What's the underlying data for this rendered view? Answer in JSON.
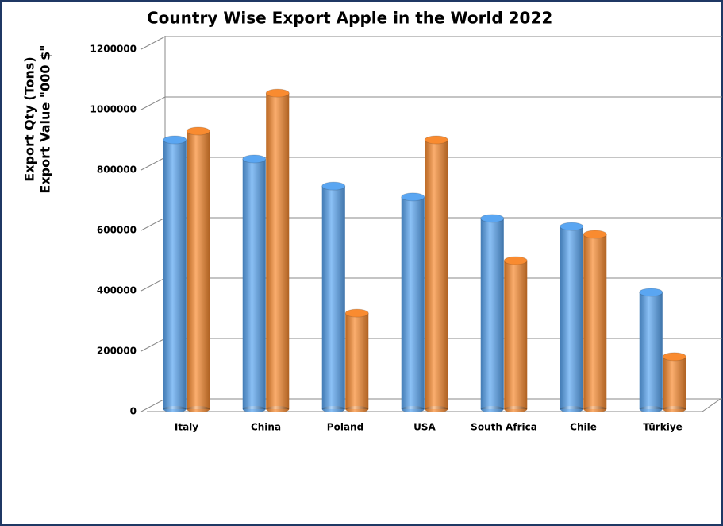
{
  "chart_data": {
    "type": "bar3d",
    "title": "Country Wise Export Apple in the World 2022",
    "y_axis_title": [
      "Export Qty (Tons)",
      "Export Value \"000 $\""
    ],
    "categories": [
      "Italy",
      "China",
      "Poland",
      "USA",
      "South Africa",
      "Chile",
      "Türkiye"
    ],
    "series": [
      {
        "color": "#5aa6f2",
        "values": [
          892000,
          829000,
          739000,
          703000,
          632000,
          605000,
          387000
        ]
      },
      {
        "color": "#f98b30",
        "values": [
          921000,
          1047000,
          318000,
          892000,
          492000,
          579000,
          174000
        ]
      }
    ],
    "ylim": [
      0,
      1200000
    ],
    "yticks": [
      0,
      200000,
      400000,
      600000,
      800000,
      1000000,
      1200000
    ],
    "grid": true
  }
}
